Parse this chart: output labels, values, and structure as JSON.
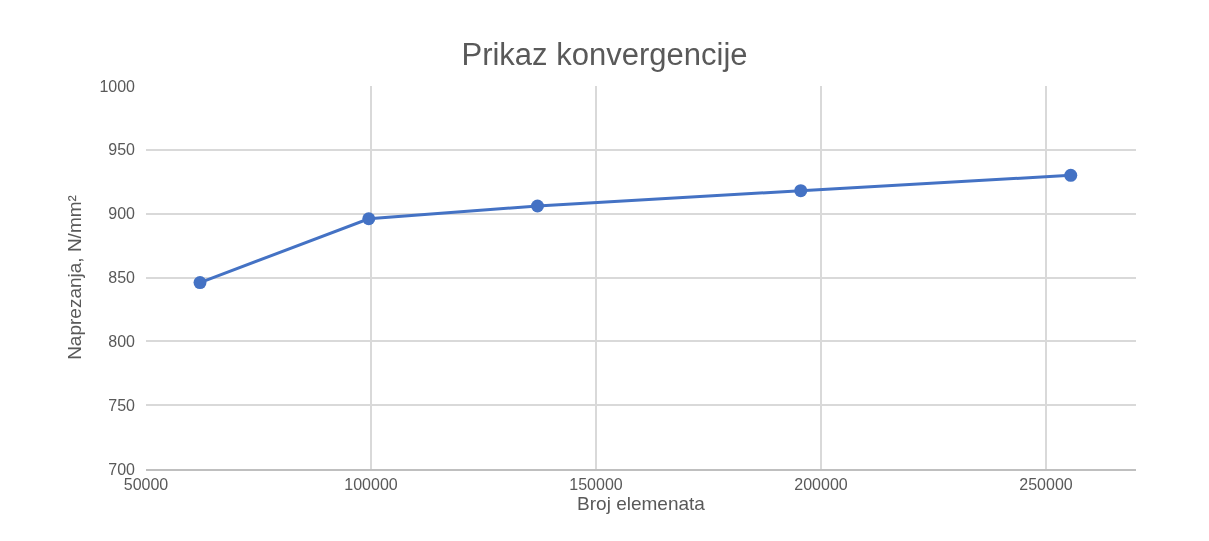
{
  "chart_data": {
    "type": "line",
    "title": "Prikaz konvergencije",
    "xlabel": "Broj elemenata",
    "ylabel": "Naprezanja, N/mm²",
    "x": [
      62000,
      99500,
      137000,
      195500,
      255500
    ],
    "series": [
      {
        "color": "#4472c4",
        "values": [
          846,
          896,
          906,
          918,
          930
        ]
      }
    ],
    "xlim": [
      50000,
      270000
    ],
    "xticks": [
      50000,
      100000,
      150000,
      200000,
      250000
    ],
    "ylim": [
      700,
      1000
    ],
    "yticks": [
      700,
      750,
      800,
      850,
      900,
      950,
      1000
    ],
    "grid": true,
    "marker": "circle",
    "line_style": "solid"
  }
}
